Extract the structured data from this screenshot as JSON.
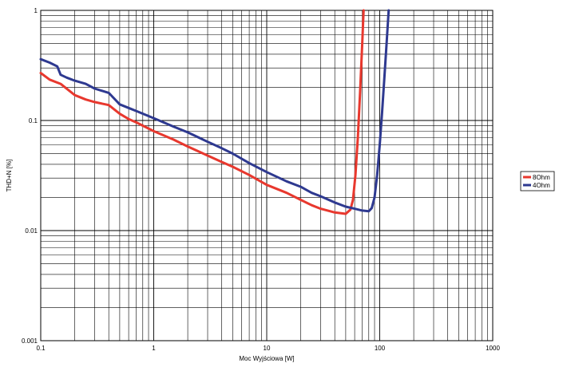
{
  "chart_data": {
    "type": "line",
    "title": "",
    "xlabel": "Moc Wyjściowa [W]",
    "ylabel": "THD+N [%]",
    "xscale": "log",
    "yscale": "log",
    "xlim": [
      0.1,
      1000
    ],
    "ylim": [
      0.001,
      1
    ],
    "x_ticks": [
      "0.1",
      "1",
      "10",
      "100",
      "1000"
    ],
    "y_ticks": [
      "0.001",
      "0.01",
      "0.1",
      "1"
    ],
    "grid": true,
    "legend_position": "right",
    "series": [
      {
        "name": "8Ohm",
        "color": "#e8382e",
        "points": [
          [
            0.1,
            0.27
          ],
          [
            0.12,
            0.235
          ],
          [
            0.15,
            0.215
          ],
          [
            0.2,
            0.17
          ],
          [
            0.25,
            0.155
          ],
          [
            0.3,
            0.147
          ],
          [
            0.4,
            0.138
          ],
          [
            0.5,
            0.115
          ],
          [
            0.6,
            0.103
          ],
          [
            0.7,
            0.096
          ],
          [
            1,
            0.08
          ],
          [
            1.5,
            0.067
          ],
          [
            2,
            0.058
          ],
          [
            3,
            0.048
          ],
          [
            4,
            0.042
          ],
          [
            5,
            0.038
          ],
          [
            7,
            0.032
          ],
          [
            10,
            0.026
          ],
          [
            15,
            0.022
          ],
          [
            20,
            0.019
          ],
          [
            25,
            0.017
          ],
          [
            30,
            0.0158
          ],
          [
            40,
            0.0146
          ],
          [
            50,
            0.0142
          ],
          [
            55,
            0.0155
          ],
          [
            58,
            0.019
          ],
          [
            61,
            0.032
          ],
          [
            64,
            0.07
          ],
          [
            67,
            0.18
          ],
          [
            70,
            0.5
          ],
          [
            72,
            1.0
          ]
        ]
      },
      {
        "name": "4Ohm",
        "color": "#2e3990",
        "points": [
          [
            0.1,
            0.36
          ],
          [
            0.12,
            0.335
          ],
          [
            0.14,
            0.31
          ],
          [
            0.15,
            0.26
          ],
          [
            0.17,
            0.245
          ],
          [
            0.2,
            0.23
          ],
          [
            0.25,
            0.215
          ],
          [
            0.3,
            0.195
          ],
          [
            0.4,
            0.178
          ],
          [
            0.5,
            0.14
          ],
          [
            0.6,
            0.13
          ],
          [
            0.7,
            0.122
          ],
          [
            1,
            0.105
          ],
          [
            1.5,
            0.088
          ],
          [
            2,
            0.078
          ],
          [
            3,
            0.064
          ],
          [
            4,
            0.056
          ],
          [
            5,
            0.05
          ],
          [
            7,
            0.041
          ],
          [
            10,
            0.034
          ],
          [
            15,
            0.028
          ],
          [
            20,
            0.025
          ],
          [
            25,
            0.022
          ],
          [
            30,
            0.0205
          ],
          [
            40,
            0.018
          ],
          [
            50,
            0.0165
          ],
          [
            60,
            0.0158
          ],
          [
            70,
            0.0152
          ],
          [
            80,
            0.015
          ],
          [
            85,
            0.016
          ],
          [
            90,
            0.02
          ],
          [
            95,
            0.032
          ],
          [
            100,
            0.06
          ],
          [
            105,
            0.12
          ],
          [
            110,
            0.25
          ],
          [
            115,
            0.5
          ],
          [
            120,
            1.0
          ]
        ]
      }
    ]
  }
}
